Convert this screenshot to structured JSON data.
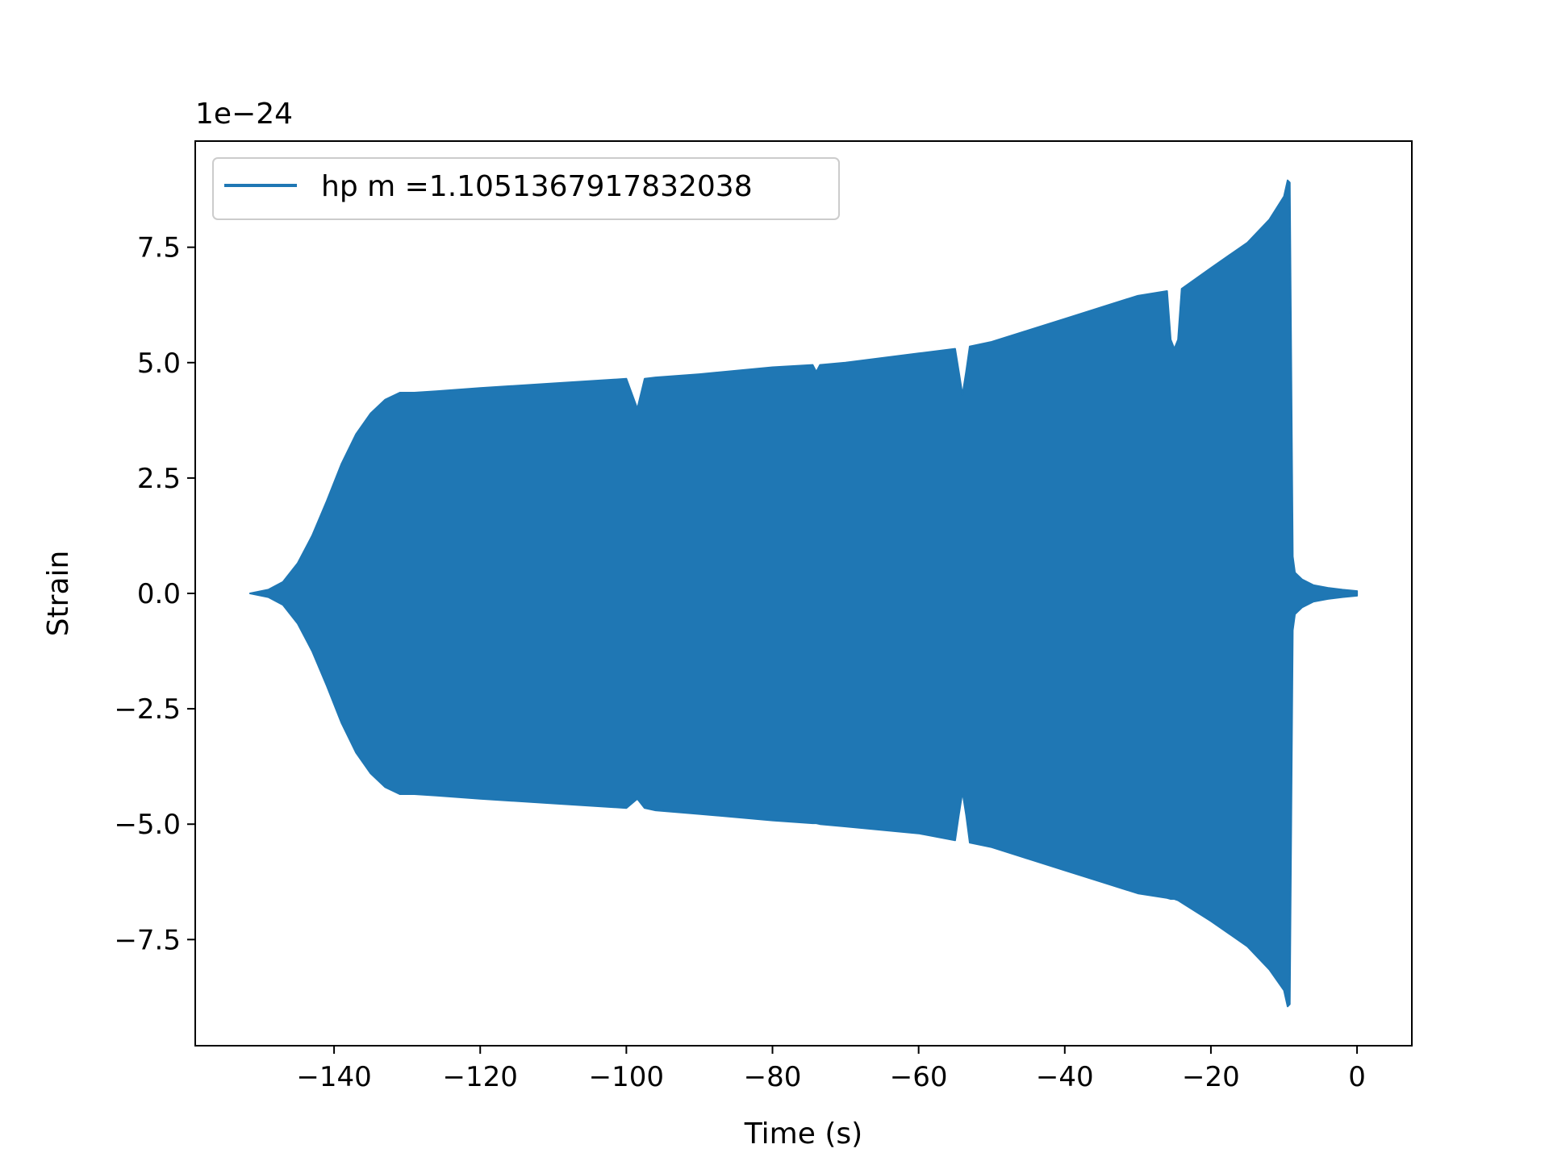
{
  "chart_data": {
    "type": "line",
    "title": "",
    "xlabel": "Time (s)",
    "ylabel": "Strain",
    "y_offset_text": "1e−24",
    "xlim": [
      -159,
      7.5
    ],
    "ylim": [
      -9.8,
      9.8
    ],
    "xticks": [
      -140,
      -120,
      -100,
      -80,
      -60,
      -40,
      -20,
      0
    ],
    "xtick_labels": [
      "−140",
      "−120",
      "−100",
      "−80",
      "−60",
      "−40",
      "−20",
      "0"
    ],
    "yticks": [
      -7.5,
      -5.0,
      -2.5,
      0.0,
      2.5,
      5.0,
      7.5
    ],
    "ytick_labels": [
      "−7.5",
      "−5.0",
      "−2.5",
      "0.0",
      "2.5",
      "5.0",
      "7.5"
    ],
    "grid": false,
    "legend": "upper left",
    "series": [
      {
        "name": "hp m =1.1051367917832038",
        "color": "#1f77b4",
        "envelope_x": [
          -151.5,
          -149,
          -147,
          -145,
          -143,
          -141,
          -139,
          -137,
          -135,
          -133,
          -131,
          -129,
          -126,
          -120,
          -110,
          -100,
          -98.5,
          -97.5,
          -96,
          -90,
          -80,
          -74.5,
          -74,
          -73.5,
          -70,
          -60,
          -55,
          -54.5,
          -54,
          -53.5,
          -53,
          -50,
          -45,
          -40,
          -35,
          -30,
          -26,
          -25.5,
          -25,
          -24.5,
          -24,
          -20,
          -15,
          -12,
          -10,
          -9.5,
          -9.2,
          -8.8,
          -8.5,
          -7.5,
          -6,
          -4,
          -2,
          0
        ],
        "envelope_upper": [
          0.0,
          0.08,
          0.25,
          0.65,
          1.25,
          2.0,
          2.8,
          3.45,
          3.9,
          4.2,
          4.35,
          4.35,
          4.38,
          4.45,
          4.55,
          4.65,
          4.0,
          4.65,
          4.68,
          4.75,
          4.9,
          4.95,
          4.8,
          4.95,
          5.0,
          5.2,
          5.3,
          4.8,
          4.3,
          4.8,
          5.35,
          5.45,
          5.7,
          5.95,
          6.2,
          6.45,
          6.55,
          5.5,
          5.3,
          5.5,
          6.6,
          7.05,
          7.6,
          8.1,
          8.6,
          8.95,
          8.9,
          0.8,
          0.45,
          0.3,
          0.18,
          0.12,
          0.08,
          0.05
        ],
        "envelope_lower": [
          0.0,
          -0.08,
          -0.25,
          -0.65,
          -1.25,
          -2.0,
          -2.8,
          -3.45,
          -3.9,
          -4.2,
          -4.35,
          -4.35,
          -4.38,
          -4.45,
          -4.55,
          -4.65,
          -4.45,
          -4.65,
          -4.7,
          -4.78,
          -4.92,
          -4.98,
          -4.98,
          -5.0,
          -5.05,
          -5.2,
          -5.35,
          -4.8,
          -4.3,
          -4.8,
          -5.4,
          -5.5,
          -5.75,
          -6.0,
          -6.25,
          -6.5,
          -6.6,
          -6.62,
          -6.62,
          -6.65,
          -6.7,
          -7.1,
          -7.65,
          -8.15,
          -8.6,
          -8.95,
          -8.9,
          -0.8,
          -0.45,
          -0.3,
          -0.18,
          -0.12,
          -0.08,
          -0.05
        ]
      }
    ]
  }
}
